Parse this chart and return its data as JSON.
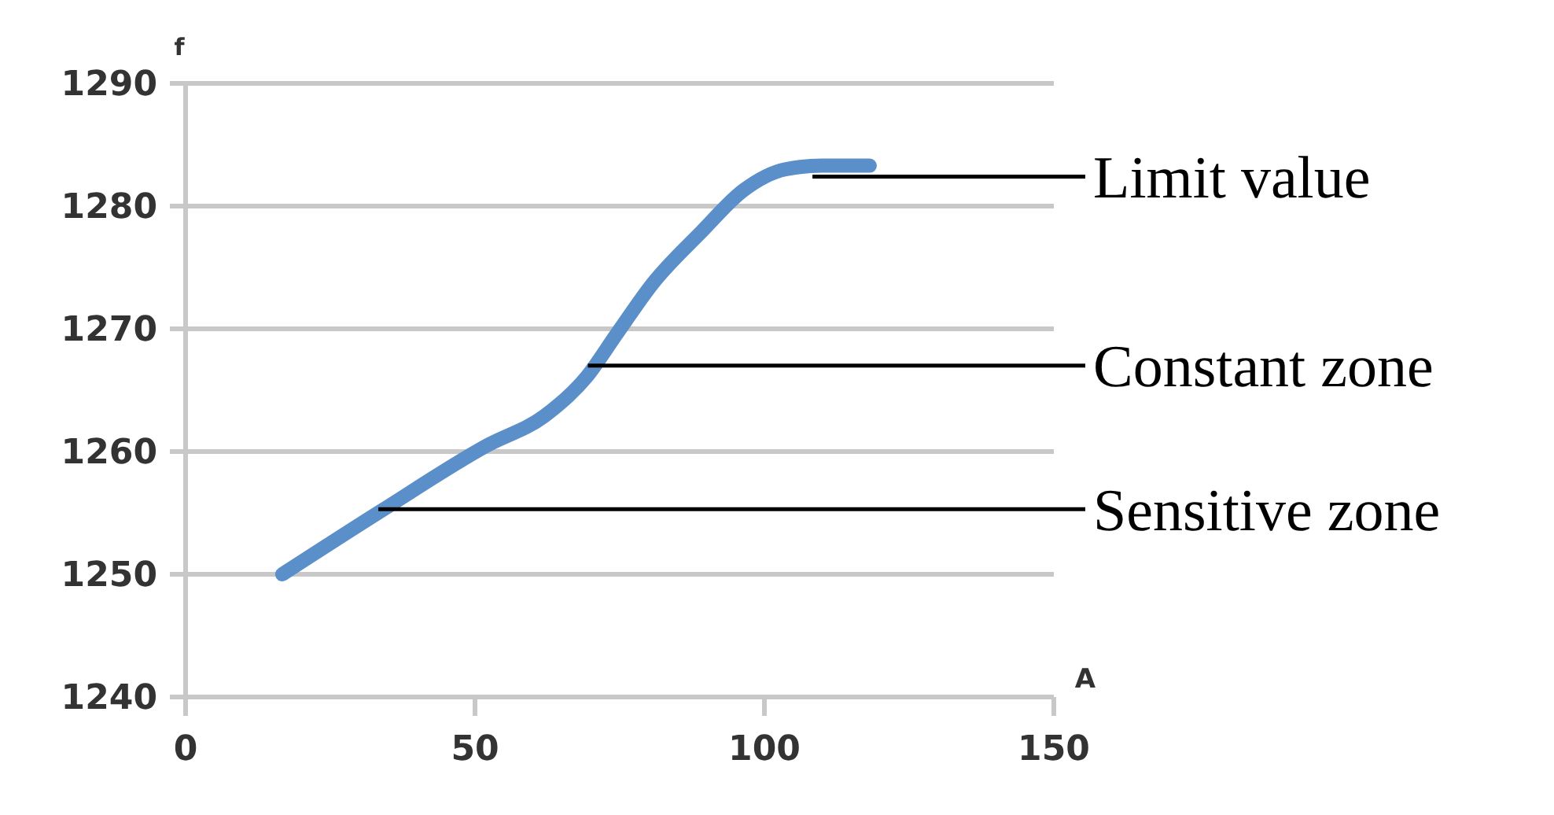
{
  "chart_data": {
    "type": "line",
    "xlabel": "A",
    "ylabel": "f",
    "x": [
      16.7,
      33.9,
      52.1,
      62,
      69.3,
      74.5,
      80.7,
      89.1,
      96.4,
      103.6,
      109.9,
      118.2
    ],
    "series": [
      {
        "color": "#5b8fc9",
        "values": [
          1250.0,
          1255.2,
          1260.5,
          1262.9,
          1266.1,
          1269.6,
          1273.7,
          1277.9,
          1281.3,
          1283.0,
          1283.3,
          1283.3
        ]
      }
    ],
    "xlim": [
      0,
      150
    ],
    "xticks": [
      0,
      50,
      100,
      150
    ],
    "ylim": [
      1240,
      1290
    ],
    "yticks": [
      1240,
      1250,
      1260,
      1270,
      1280,
      1290
    ],
    "grid": "y",
    "marker": "none",
    "line_style": "solid",
    "annotations": [
      {
        "text": "Limit value",
        "x": 108.3,
        "y": 1282.4
      },
      {
        "text": "Constant zone",
        "x": 69.5,
        "y": 1267.0
      },
      {
        "text": "Sensitive zone",
        "x": 33.3,
        "y": 1255.3
      }
    ]
  }
}
